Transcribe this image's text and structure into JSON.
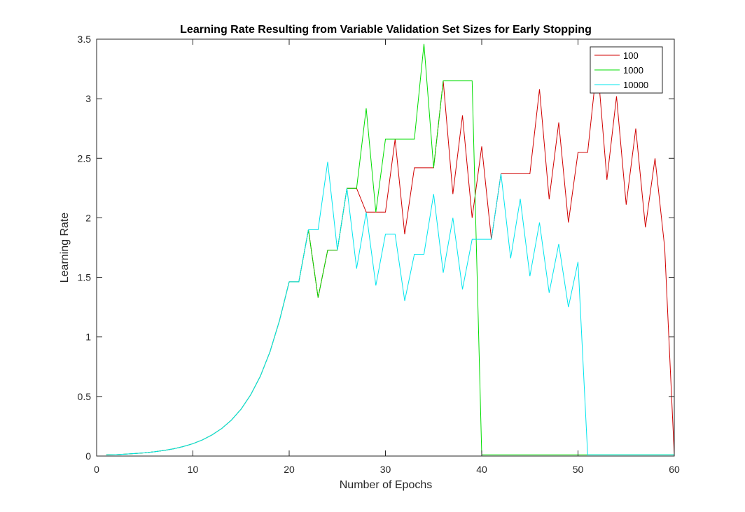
{
  "chart_data": {
    "type": "line",
    "title": "Learning Rate Resulting from Variable Validation Set Sizes for Early Stopping",
    "xlabel": "Number of Epochs",
    "ylabel": "Learning Rate",
    "xlim": [
      0,
      60
    ],
    "ylim": [
      0,
      3.5
    ],
    "xticks": [
      0,
      10,
      20,
      30,
      40,
      50,
      60
    ],
    "yticks": [
      0,
      0.5,
      1,
      1.5,
      2,
      2.5,
      3,
      3.5
    ],
    "xtick_labels": [
      "0",
      "10",
      "20",
      "30",
      "40",
      "50",
      "60"
    ],
    "ytick_labels": [
      "0",
      "0.5",
      "1",
      "1.5",
      "2",
      "2.5",
      "3",
      "3.5"
    ],
    "grid": false,
    "legend_position": "top-right",
    "series": [
      {
        "name": "100",
        "color": "#d00000",
        "points": [
          [
            1,
            0.01
          ],
          [
            2,
            0.012
          ],
          [
            3,
            0.016
          ],
          [
            4,
            0.021
          ],
          [
            5,
            0.027
          ],
          [
            6,
            0.036
          ],
          [
            7,
            0.047
          ],
          [
            8,
            0.061
          ],
          [
            9,
            0.08
          ],
          [
            10,
            0.104
          ],
          [
            11,
            0.136
          ],
          [
            12,
            0.178
          ],
          [
            13,
            0.232
          ],
          [
            14,
            0.302
          ],
          [
            15,
            0.394
          ],
          [
            16,
            0.514
          ],
          [
            17,
            0.67
          ],
          [
            18,
            0.874
          ],
          [
            19,
            1.14
          ],
          [
            20,
            1.463
          ],
          [
            21,
            1.463
          ],
          [
            22,
            1.9
          ],
          [
            23,
            1.33
          ],
          [
            24,
            1.729
          ],
          [
            25,
            1.729
          ],
          [
            26,
            2.248
          ],
          [
            27,
            2.248
          ],
          [
            28,
            2.048
          ],
          [
            29,
            2.048
          ],
          [
            30,
            2.048
          ],
          [
            31,
            2.66
          ],
          [
            32,
            1.862
          ],
          [
            33,
            2.42
          ],
          [
            34,
            2.42
          ],
          [
            35,
            2.42
          ],
          [
            36,
            3.15
          ],
          [
            37,
            2.2
          ],
          [
            38,
            2.86
          ],
          [
            39,
            2.0
          ],
          [
            40,
            2.6
          ],
          [
            41,
            1.82
          ],
          [
            42,
            2.37
          ],
          [
            43,
            2.37
          ],
          [
            44,
            2.37
          ],
          [
            45,
            2.37
          ],
          [
            46,
            3.08
          ],
          [
            47,
            2.156
          ],
          [
            48,
            2.8
          ],
          [
            49,
            1.96
          ],
          [
            50,
            2.55
          ],
          [
            51,
            2.55
          ],
          [
            52,
            3.31
          ],
          [
            53,
            2.32
          ],
          [
            54,
            3.02
          ],
          [
            55,
            2.11
          ],
          [
            56,
            2.75
          ],
          [
            57,
            1.92
          ],
          [
            58,
            2.5
          ],
          [
            59,
            1.75
          ],
          [
            60,
            0.01
          ]
        ]
      },
      {
        "name": "1000",
        "color": "#00dd00",
        "points": [
          [
            1,
            0.01
          ],
          [
            2,
            0.012
          ],
          [
            3,
            0.016
          ],
          [
            4,
            0.021
          ],
          [
            5,
            0.027
          ],
          [
            6,
            0.036
          ],
          [
            7,
            0.047
          ],
          [
            8,
            0.061
          ],
          [
            9,
            0.08
          ],
          [
            10,
            0.104
          ],
          [
            11,
            0.136
          ],
          [
            12,
            0.178
          ],
          [
            13,
            0.232
          ],
          [
            14,
            0.302
          ],
          [
            15,
            0.394
          ],
          [
            16,
            0.514
          ],
          [
            17,
            0.67
          ],
          [
            18,
            0.874
          ],
          [
            19,
            1.14
          ],
          [
            20,
            1.463
          ],
          [
            21,
            1.463
          ],
          [
            22,
            1.9
          ],
          [
            23,
            1.33
          ],
          [
            24,
            1.729
          ],
          [
            25,
            1.729
          ],
          [
            26,
            2.248
          ],
          [
            27,
            2.248
          ],
          [
            28,
            2.92
          ],
          [
            29,
            2.048
          ],
          [
            30,
            2.66
          ],
          [
            31,
            2.66
          ],
          [
            32,
            2.66
          ],
          [
            33,
            2.66
          ],
          [
            34,
            3.46
          ],
          [
            35,
            2.42
          ],
          [
            36,
            3.15
          ],
          [
            37,
            3.15
          ],
          [
            38,
            3.15
          ],
          [
            39,
            3.15
          ],
          [
            40,
            0.01
          ],
          [
            41,
            0.01
          ],
          [
            42,
            0.01
          ],
          [
            43,
            0.01
          ],
          [
            44,
            0.01
          ],
          [
            45,
            0.01
          ],
          [
            46,
            0.01
          ],
          [
            47,
            0.01
          ],
          [
            48,
            0.01
          ],
          [
            49,
            0.01
          ],
          [
            50,
            0.01
          ],
          [
            51,
            0.01
          ],
          [
            52,
            0.01
          ],
          [
            53,
            0.01
          ],
          [
            54,
            0.01
          ],
          [
            55,
            0.01
          ],
          [
            56,
            0.01
          ],
          [
            57,
            0.01
          ],
          [
            58,
            0.01
          ],
          [
            59,
            0.01
          ],
          [
            60,
            0.01
          ]
        ]
      },
      {
        "name": "10000",
        "color": "#00e5ee",
        "points": [
          [
            1,
            0.01
          ],
          [
            2,
            0.012
          ],
          [
            3,
            0.016
          ],
          [
            4,
            0.021
          ],
          [
            5,
            0.027
          ],
          [
            6,
            0.036
          ],
          [
            7,
            0.047
          ],
          [
            8,
            0.061
          ],
          [
            9,
            0.08
          ],
          [
            10,
            0.104
          ],
          [
            11,
            0.136
          ],
          [
            12,
            0.178
          ],
          [
            13,
            0.232
          ],
          [
            14,
            0.302
          ],
          [
            15,
            0.394
          ],
          [
            16,
            0.514
          ],
          [
            17,
            0.67
          ],
          [
            18,
            0.874
          ],
          [
            19,
            1.14
          ],
          [
            20,
            1.463
          ],
          [
            21,
            1.463
          ],
          [
            22,
            1.9
          ],
          [
            23,
            1.9
          ],
          [
            24,
            2.47
          ],
          [
            25,
            1.729
          ],
          [
            26,
            2.248
          ],
          [
            27,
            1.574
          ],
          [
            28,
            2.046
          ],
          [
            29,
            1.432
          ],
          [
            30,
            1.862
          ],
          [
            31,
            1.862
          ],
          [
            32,
            1.303
          ],
          [
            33,
            1.694
          ],
          [
            34,
            1.694
          ],
          [
            35,
            2.2
          ],
          [
            36,
            1.54
          ],
          [
            37,
            2.0
          ],
          [
            38,
            1.4
          ],
          [
            39,
            1.82
          ],
          [
            40,
            1.82
          ],
          [
            41,
            1.82
          ],
          [
            42,
            2.37
          ],
          [
            43,
            1.66
          ],
          [
            44,
            2.16
          ],
          [
            45,
            1.51
          ],
          [
            46,
            1.96
          ],
          [
            47,
            1.37
          ],
          [
            48,
            1.78
          ],
          [
            49,
            1.25
          ],
          [
            50,
            1.63
          ],
          [
            51,
            0.01
          ],
          [
            52,
            0.01
          ],
          [
            53,
            0.01
          ],
          [
            54,
            0.01
          ],
          [
            55,
            0.01
          ],
          [
            56,
            0.01
          ],
          [
            57,
            0.01
          ],
          [
            58,
            0.01
          ],
          [
            59,
            0.01
          ],
          [
            60,
            0.01
          ]
        ]
      }
    ]
  }
}
